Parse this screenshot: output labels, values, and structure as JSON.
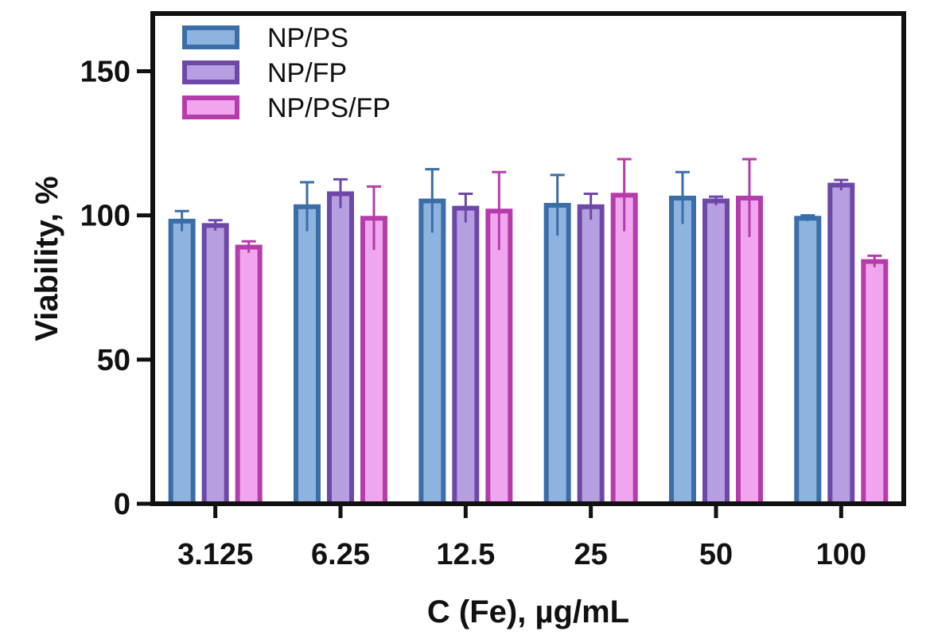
{
  "chart_data": {
    "type": "bar",
    "title": "",
    "xlabel": "C (Fe), µg/mL",
    "ylabel": "Viability, %",
    "categories": [
      "3.125",
      "6.25",
      "12.5",
      "25",
      "50",
      "100"
    ],
    "ylim": [
      0,
      170
    ],
    "yticks": [
      0,
      50,
      100,
      150
    ],
    "legend_position": "top-left",
    "series": [
      {
        "name": "NP/PS",
        "color": "#3a6ea8",
        "fill": "#8fb3df",
        "values": [
          98,
          103,
          105,
          103.5,
          106,
          99
        ],
        "errors": [
          3.5,
          8.5,
          11,
          10.5,
          9,
          1
        ]
      },
      {
        "name": "NP/FP",
        "color": "#6e48a8",
        "fill": "#b59fe0",
        "values": [
          96.5,
          107.5,
          102.5,
          103,
          105,
          110.5
        ],
        "errors": [
          1.8,
          5,
          5,
          4.5,
          1.5,
          1.8
        ]
      },
      {
        "name": "NP/PS/FP",
        "color": "#b63cab",
        "fill": "#f0a6ee",
        "values": [
          89,
          99,
          101.5,
          107,
          106,
          84
        ],
        "errors": [
          2,
          11,
          13.5,
          12.5,
          13.5,
          2
        ]
      }
    ]
  }
}
